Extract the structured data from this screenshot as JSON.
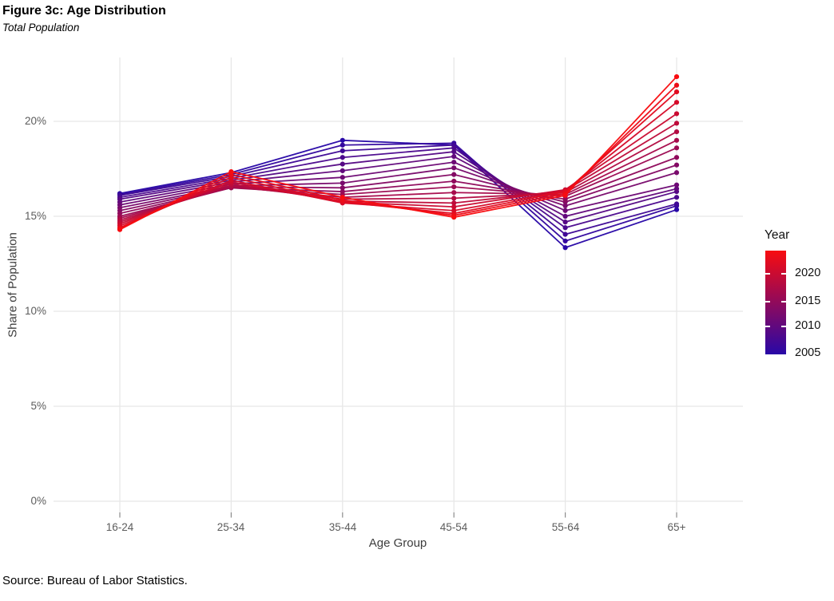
{
  "header": {
    "title": "Figure 3c: Age Distribution",
    "subtitle": "Total Population"
  },
  "footer": {
    "source": "Source: Bureau of Labor Statistics."
  },
  "chart_data": {
    "type": "line",
    "title": "Figure 3c: Age Distribution",
    "subtitle": "Total Population",
    "xlabel": "Age Group",
    "ylabel": "Share of Population",
    "categories": [
      "16-24",
      "25-34",
      "35-44",
      "45-54",
      "55-64",
      "65+"
    ],
    "y_ticks": [
      "0%",
      "5%",
      "10%",
      "15%",
      "20%"
    ],
    "ylim": [
      0,
      23.5
    ],
    "grid": true,
    "legend": {
      "title": "Year",
      "position": "right",
      "ticks": [
        2020,
        2015,
        2010,
        2005
      ],
      "min_year": 2005,
      "max_year": 2023,
      "low_color": "#2808A7",
      "high_color": "#F80C10"
    },
    "series": [
      {
        "name": "2005",
        "values": [
          16.2,
          17.3,
          19.0,
          18.75,
          13.35,
          15.35
        ]
      },
      {
        "name": "2006",
        "values": [
          16.15,
          17.2,
          18.75,
          18.85,
          13.7,
          15.55
        ]
      },
      {
        "name": "2007",
        "values": [
          16.1,
          17.1,
          18.45,
          18.75,
          14.05,
          15.65
        ]
      },
      {
        "name": "2008",
        "values": [
          16.0,
          17.0,
          18.1,
          18.6,
          14.4,
          16.0
        ]
      },
      {
        "name": "2009",
        "values": [
          15.9,
          16.9,
          17.75,
          18.4,
          14.7,
          16.3
        ]
      },
      {
        "name": "2010",
        "values": [
          15.75,
          16.8,
          17.4,
          18.15,
          15.0,
          16.45
        ]
      },
      {
        "name": "2011",
        "values": [
          15.6,
          16.7,
          17.05,
          17.85,
          15.3,
          16.65
        ]
      },
      {
        "name": "2012",
        "values": [
          15.45,
          16.6,
          16.75,
          17.55,
          15.55,
          17.3
        ]
      },
      {
        "name": "2013",
        "values": [
          15.3,
          16.55,
          16.5,
          17.2,
          15.75,
          17.7
        ]
      },
      {
        "name": "2014",
        "values": [
          15.15,
          16.5,
          16.3,
          16.85,
          15.9,
          18.1
        ]
      },
      {
        "name": "2015",
        "values": [
          15.0,
          16.5,
          16.15,
          16.55,
          16.05,
          18.6
        ]
      },
      {
        "name": "2016",
        "values": [
          14.9,
          16.55,
          16.0,
          16.25,
          16.15,
          19.0
        ]
      },
      {
        "name": "2017",
        "values": [
          14.8,
          16.6,
          15.9,
          15.95,
          16.25,
          19.45
        ]
      },
      {
        "name": "2018",
        "values": [
          14.7,
          16.7,
          15.8,
          15.7,
          16.35,
          19.9
        ]
      },
      {
        "name": "2019",
        "values": [
          14.6,
          16.8,
          15.75,
          15.5,
          16.4,
          20.4
        ]
      },
      {
        "name": "2020",
        "values": [
          14.5,
          16.9,
          15.7,
          15.3,
          16.35,
          21.0
        ]
      },
      {
        "name": "2021",
        "values": [
          14.4,
          17.05,
          15.75,
          15.15,
          16.3,
          21.55
        ]
      },
      {
        "name": "2022",
        "values": [
          14.35,
          17.2,
          15.85,
          15.05,
          16.2,
          21.9
        ]
      },
      {
        "name": "2023",
        "values": [
          14.3,
          17.35,
          16.0,
          14.95,
          16.1,
          22.35
        ]
      }
    ]
  }
}
